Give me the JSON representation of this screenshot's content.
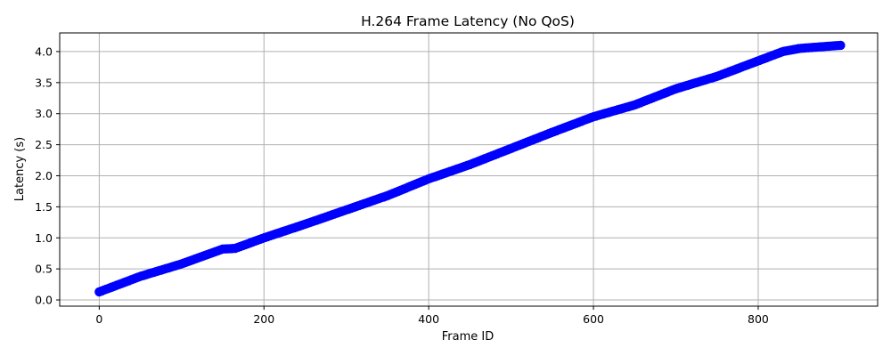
{
  "chart_data": {
    "type": "scatter",
    "title": "H.264 Frame Latency (No QoS)",
    "xlabel": "Frame ID",
    "ylabel": "Latency (s)",
    "xlim": [
      -48,
      945
    ],
    "ylim": [
      -0.1,
      4.3
    ],
    "x_ticks": [
      0,
      200,
      400,
      600,
      800
    ],
    "y_ticks": [
      0.0,
      0.5,
      1.0,
      1.5,
      2.0,
      2.5,
      3.0,
      3.5,
      4.0
    ],
    "x_tick_labels": [
      "0",
      "200",
      "400",
      "600",
      "800"
    ],
    "y_tick_labels": [
      "0.0",
      "0.5",
      "1.0",
      "1.5",
      "2.0",
      "2.5",
      "3.0",
      "3.5",
      "4.0"
    ],
    "grid": true,
    "marker_color": "#0000ff",
    "grid_color": "#b0b0b0",
    "series": [
      {
        "x": [
          0,
          50,
          100,
          150,
          165,
          200,
          250,
          300,
          350,
          400,
          450,
          500,
          550,
          600,
          650,
          700,
          750,
          800,
          830,
          850,
          870,
          900
        ],
        "values": [
          0.13,
          0.38,
          0.58,
          0.82,
          0.83,
          1.0,
          1.22,
          1.45,
          1.68,
          1.95,
          2.18,
          2.44,
          2.7,
          2.95,
          3.14,
          3.4,
          3.6,
          3.85,
          4.0,
          4.05,
          4.07,
          4.1
        ]
      }
    ]
  }
}
